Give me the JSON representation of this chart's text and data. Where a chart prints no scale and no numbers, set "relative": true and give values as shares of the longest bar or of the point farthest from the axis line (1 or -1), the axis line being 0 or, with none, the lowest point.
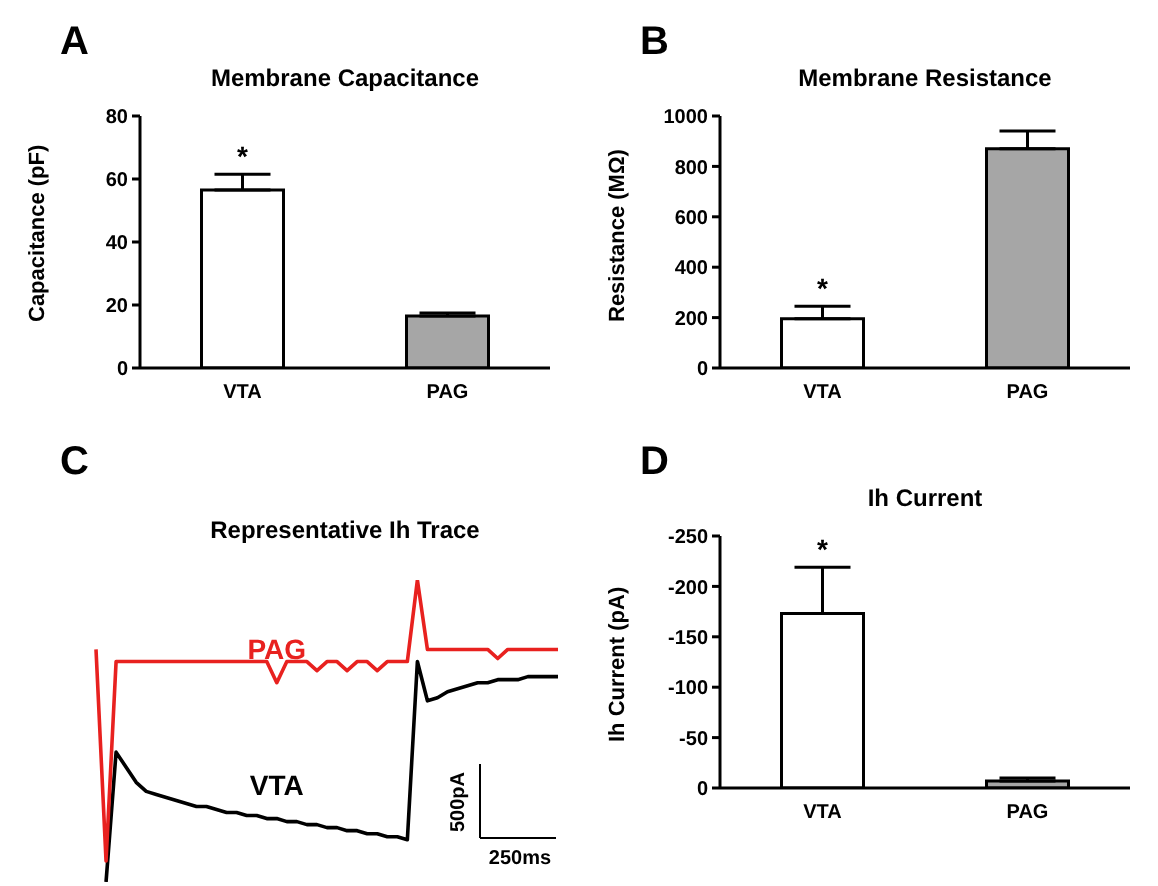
{
  "chart_data": [
    {
      "type": "bar",
      "title": "Membrane Capacitance",
      "ylabel": "Capacitance (pF)",
      "categories": [
        "VTA",
        "PAG"
      ],
      "values": [
        56.5,
        16.5
      ],
      "errors": [
        [
          56.5,
          61.5
        ],
        [
          16.5,
          17.5
        ]
      ],
      "colors": [
        "#ffffff",
        "#a6a6a6"
      ],
      "ylim": [
        0,
        80
      ],
      "yticks": [
        0,
        20,
        40,
        60,
        80
      ],
      "annotations": [
        "A",
        "*"
      ]
    },
    {
      "type": "bar",
      "title": "Membrane Resistance",
      "ylabel": "Resistance (MΩ)",
      "categories": [
        "VTA",
        "PAG"
      ],
      "values": [
        195,
        870
      ],
      "errors": [
        [
          195,
          245
        ],
        [
          870,
          940
        ]
      ],
      "colors": [
        "#ffffff",
        "#a6a6a6"
      ],
      "ylim": [
        0,
        1000
      ],
      "yticks": [
        0,
        200,
        400,
        600,
        800,
        1000
      ],
      "annotations": [
        "B",
        "*"
      ]
    },
    {
      "type": "line",
      "title": "Representative Ih Trace",
      "relative": true,
      "categories": [
        null,
        null,
        null,
        null,
        null,
        null,
        null,
        null,
        null,
        null,
        null,
        null,
        null,
        null,
        null,
        null,
        null,
        null,
        null,
        null,
        null,
        null,
        null,
        null,
        null,
        null,
        null,
        null,
        null,
        null,
        null,
        null,
        null,
        null,
        null,
        null,
        null,
        null,
        null,
        null,
        null,
        null,
        null,
        null,
        null,
        null,
        null
      ],
      "series": [
        {
          "name": "VTA",
          "color": "#000000",
          "values": [
            null,
            0,
            0.43,
            0.38,
            0.33,
            0.3,
            0.29,
            0.28,
            0.27,
            0.26,
            0.25,
            0.25,
            0.24,
            0.23,
            0.23,
            0.22,
            0.22,
            0.21,
            0.21,
            0.2,
            0.2,
            0.19,
            0.19,
            0.18,
            0.18,
            0.17,
            0.17,
            0.16,
            0.16,
            0.15,
            0.15,
            0.14,
            0.73,
            0.6,
            0.61,
            0.63,
            0.64,
            0.65,
            0.66,
            0.66,
            0.67,
            0.67,
            0.67,
            0.68,
            0.68,
            0.68,
            0.68
          ]
        },
        {
          "name": "PAG",
          "color": "#e8211f",
          "values": [
            0.77,
            0.07,
            0.73,
            0.73,
            0.73,
            0.73,
            0.73,
            0.73,
            0.73,
            0.73,
            0.73,
            0.73,
            0.73,
            0.73,
            0.73,
            0.73,
            0.73,
            0.73,
            0.66,
            0.73,
            0.73,
            0.73,
            0.7,
            0.73,
            0.73,
            0.7,
            0.73,
            0.73,
            0.7,
            0.73,
            0.73,
            0.73,
            1,
            0.77,
            0.77,
            0.77,
            0.77,
            0.77,
            0.77,
            0.77,
            0.74,
            0.77,
            0.77,
            0.77,
            0.77,
            0.77,
            0.77
          ]
        }
      ],
      "annotations": [
        "C",
        "500pA",
        "250ms"
      ]
    },
    {
      "type": "bar",
      "title": "Ih Current",
      "ylabel": "Ih Current (pA)",
      "categories": [
        "VTA",
        "PAG"
      ],
      "values": [
        -173,
        -7
      ],
      "errors": [
        [
          -219,
          -173
        ],
        [
          -10,
          -7
        ]
      ],
      "colors": [
        "#ffffff",
        "#a6a6a6"
      ],
      "ylim": [
        0,
        -250
      ],
      "yticks": [
        0,
        -50,
        -100,
        -150,
        -200,
        -250
      ],
      "annotations": [
        "D",
        "*"
      ]
    }
  ]
}
